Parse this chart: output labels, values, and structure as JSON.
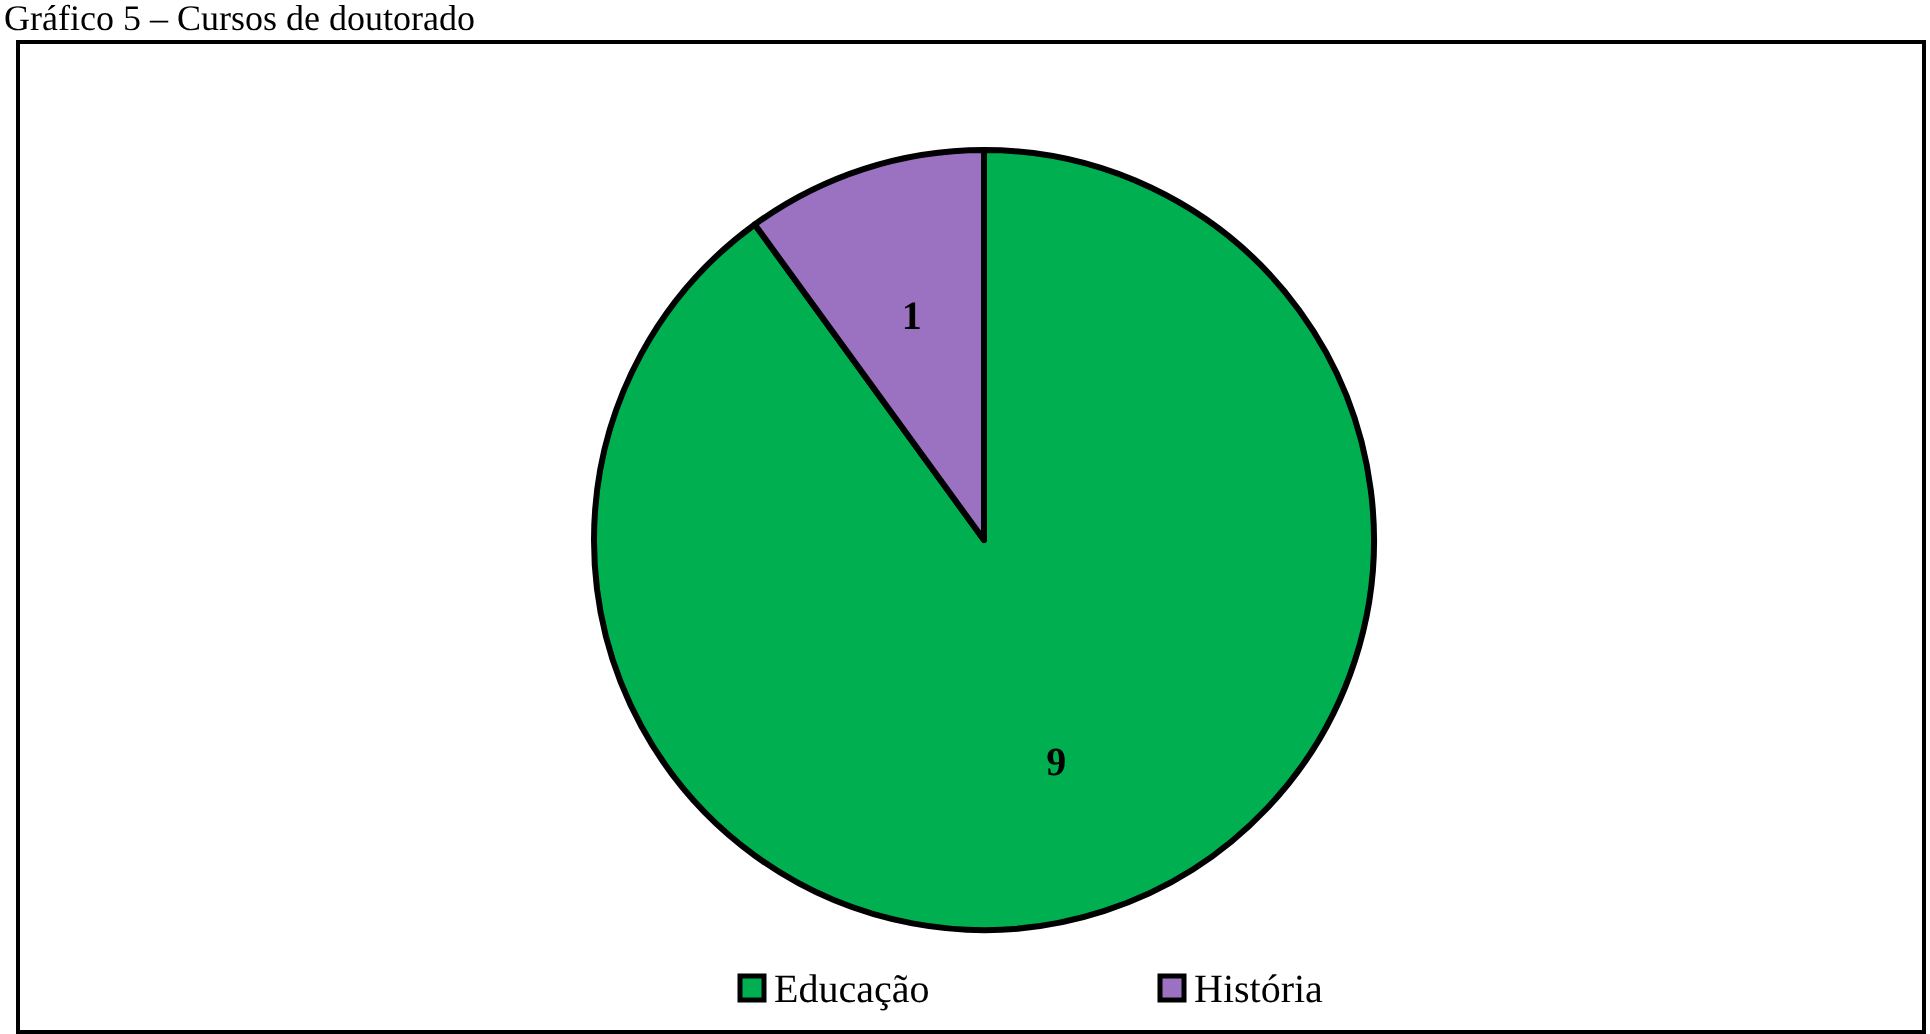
{
  "chart_data": {
    "type": "pie",
    "title": "Gráfico 5 – Cursos de doutorado",
    "categories": [
      "Educação",
      "História"
    ],
    "values": [
      9,
      1
    ],
    "colors": [
      "#00b050",
      "#9b72c1"
    ],
    "data_labels": true,
    "legend": "bottom"
  }
}
